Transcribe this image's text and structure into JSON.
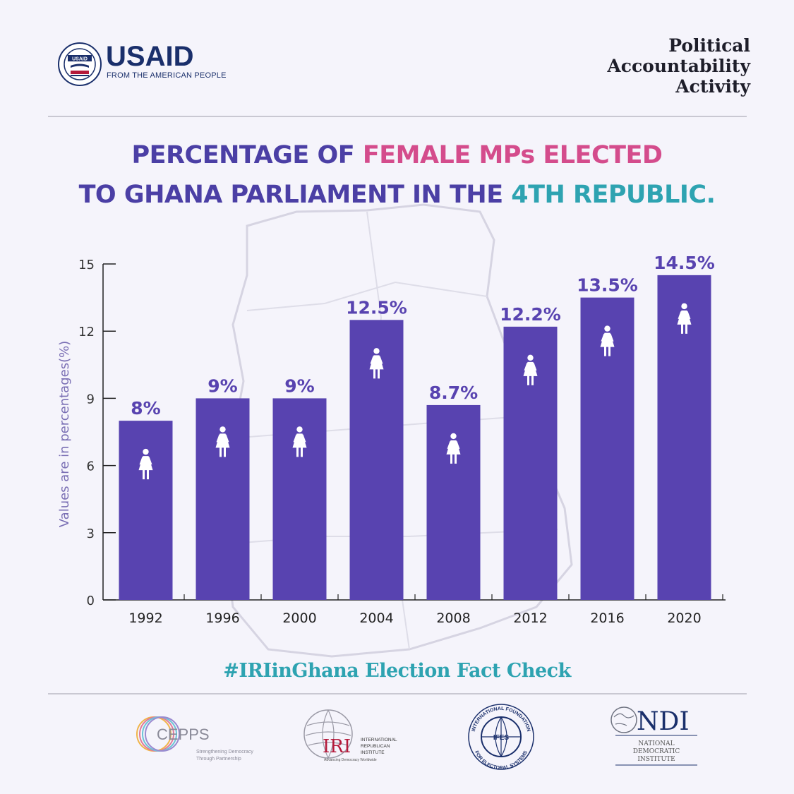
{
  "header": {
    "usaid_word": "USAID",
    "usaid_tagline": "FROM THE AMERICAN PEOPLE",
    "usaid_seal_text": "USAID",
    "activity_lines": [
      "Political",
      "Accountability",
      "Activity"
    ]
  },
  "title": {
    "line1_part1": "PERCENTAGE OF ",
    "line1_part2": "FEMALE MPs ELECTED",
    "line2_part1": "TO GHANA PARLIAMENT IN THE ",
    "line2_part2": "4TH REPUBLIC."
  },
  "colors": {
    "bar": "#5843b0",
    "title_purple": "#4b3fa5",
    "pink": "#d44c8c",
    "teal": "#2ea3b1",
    "icon": "#ffffff"
  },
  "chart_data": {
    "type": "bar",
    "categories": [
      "1992",
      "1996",
      "2000",
      "2004",
      "2008",
      "2012",
      "2016",
      "2020"
    ],
    "values": [
      8,
      9,
      9,
      12.5,
      8.7,
      12.2,
      13.5,
      14.5
    ],
    "data_labels": [
      "8%",
      "9%",
      "9%",
      "12.5%",
      "8.7%",
      "12.2%",
      "13.5%",
      "14.5%"
    ],
    "ylabel": "Values are in percentages(%)",
    "xlabel": "",
    "ylim": [
      0,
      15
    ],
    "yticks": [
      "0",
      "3",
      "6",
      "9",
      "12",
      "15"
    ],
    "grid": false,
    "icon": "female-figure-icon"
  },
  "footer": {
    "hashtag": "#IRIinGhana Election Fact Check",
    "cepps_name": "CEPPS",
    "cepps_tag_line1": "Strengthening Democracy",
    "cepps_tag_line2": "Through Partnership",
    "iri_mark": "IRI",
    "iri_line1": "INTERNATIONAL",
    "iri_line2": "REPUBLICAN",
    "iri_line3": "INSTITUTE",
    "iri_tag": "Advancing Democracy Worldwide",
    "ifes_mark": "IFES",
    "ifes_ring_top": "INTERNATIONAL FOUNDATION",
    "ifes_ring_bottom": "FOR ELECTORAL SYSTEMS",
    "ndi_mark": "NDI",
    "ndi_line1": "NATIONAL",
    "ndi_line2": "DEMOCRATIC",
    "ndi_line3": "INSTITUTE"
  }
}
